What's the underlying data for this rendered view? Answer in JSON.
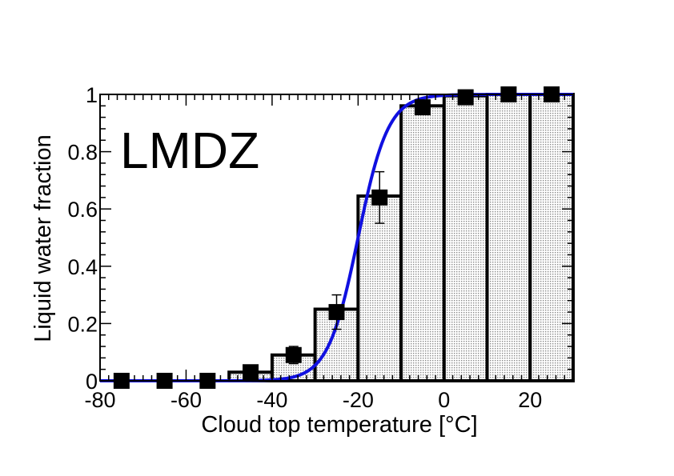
{
  "chart_data": {
    "type": "bar",
    "annotation": "LMDZ",
    "xlabel": "Cloud top  temperature [°C]",
    "ylabel": "Liquid water fraction",
    "xlim": [
      -80,
      30
    ],
    "ylim": [
      0,
      1
    ],
    "xticks": [
      "-80",
      "-60",
      "-40",
      "-20",
      "0",
      "20"
    ],
    "yticks": [
      "0",
      "0.2",
      "0.4",
      "0.6",
      "0.8",
      "1"
    ],
    "grid": false,
    "legend": "none",
    "bin_edges": [
      -80,
      -70,
      -60,
      -50,
      -40,
      -30,
      -20,
      -10,
      0,
      10,
      20,
      30
    ],
    "bars": [
      0.0,
      0.0,
      0.0,
      0.03,
      0.09,
      0.25,
      0.645,
      0.96,
      0.995,
      1.0,
      1.0
    ],
    "points": {
      "x": [
        -75,
        -65,
        -55,
        -45,
        -35,
        -25,
        -15,
        -5,
        5,
        15,
        25
      ],
      "y": [
        0.0,
        0.0,
        0.0,
        0.03,
        0.09,
        0.24,
        0.64,
        0.955,
        0.99,
        1.0,
        1.0
      ],
      "err": [
        0.005,
        0.005,
        0.005,
        0.01,
        0.03,
        0.06,
        0.09,
        0.02,
        0.01,
        0.005,
        0.005
      ]
    },
    "fit_curve": {
      "type": "logistic",
      "center": -20,
      "scale": 3.5
    },
    "colors": {
      "bar_edge": "#000000",
      "bar_fill_pattern": "dotted",
      "curve": "#1010e0",
      "marker": "#000000"
    }
  }
}
